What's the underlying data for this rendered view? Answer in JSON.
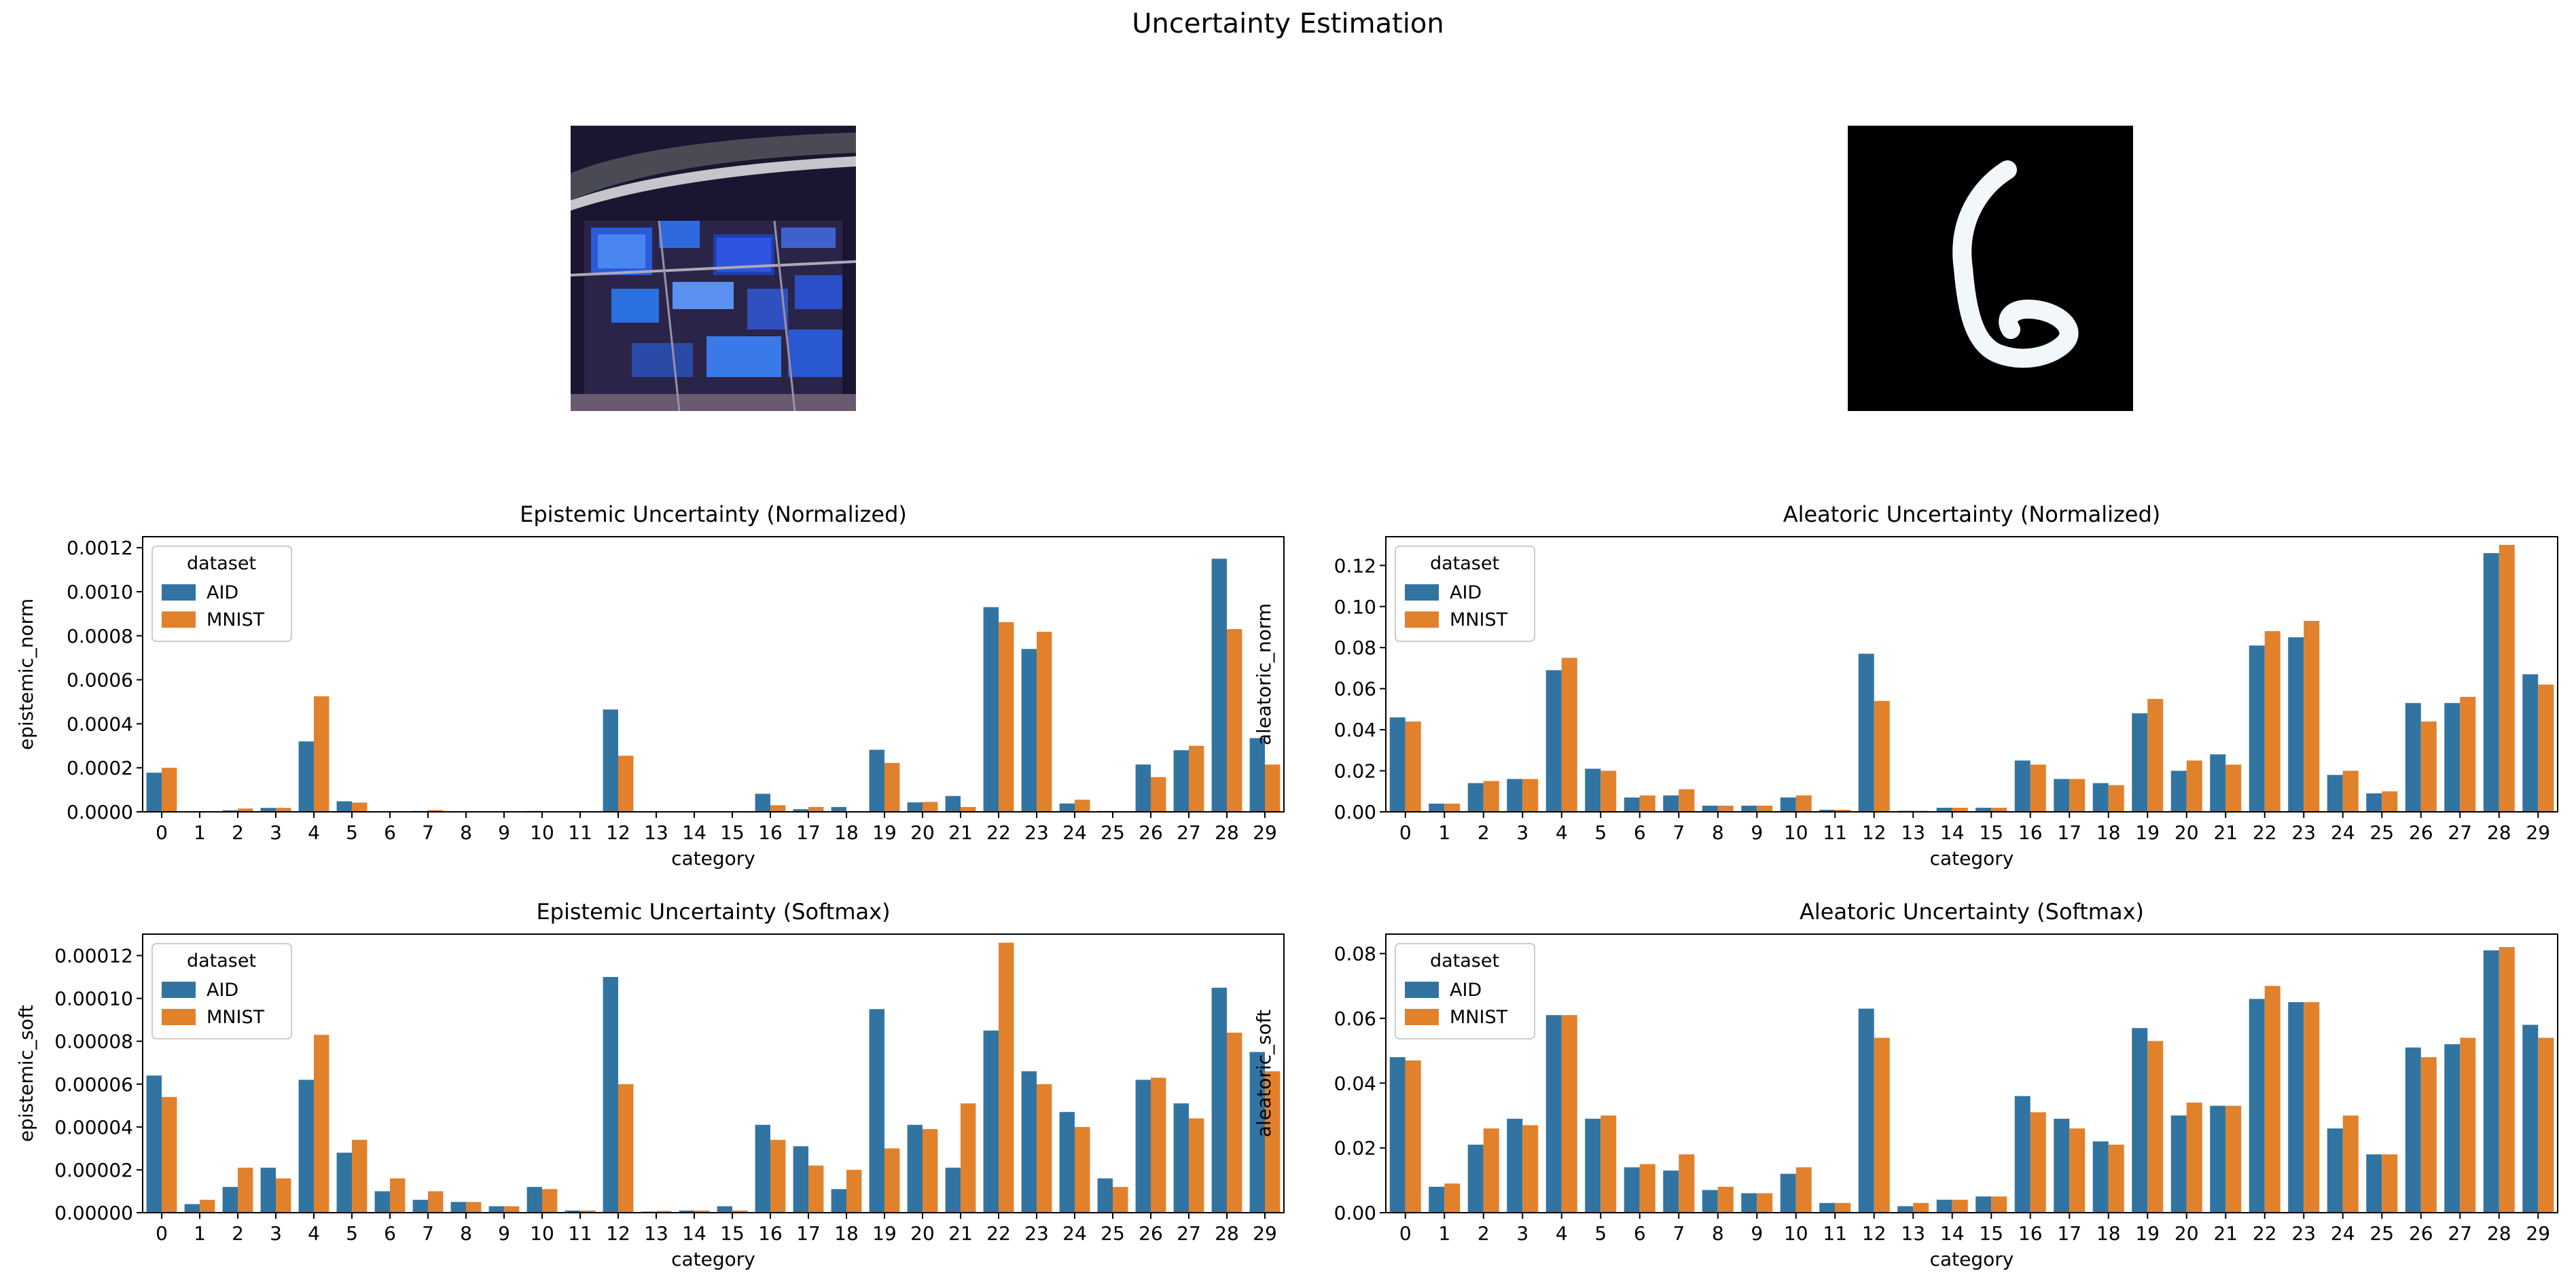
{
  "figure_title": "Uncertainty Estimation",
  "colors": {
    "aid": "#3274a1",
    "mnist": "#e1812c"
  },
  "images": [
    {
      "name": "aerial-image",
      "description_icon": "aerial-satellite-photo"
    },
    {
      "name": "mnist-digit-image",
      "description_icon": "handwritten-digit-six"
    }
  ],
  "chart_data": [
    {
      "type": "bar",
      "title": "Epistemic Uncertainty (Normalized)",
      "xlabel": "category",
      "ylabel": "epistemic_norm",
      "ylim": [
        0,
        0.00125
      ],
      "yticks": [
        0,
        0.0002,
        0.0004,
        0.0006,
        0.0008,
        0.001,
        0.0012
      ],
      "ytick_labels": [
        "0.0000",
        "0.0002",
        "0.0004",
        "0.0006",
        "0.0008",
        "0.0010",
        "0.0012"
      ],
      "legend_title": "dataset",
      "legend_loc": "upper-left",
      "categories": [
        "0",
        "1",
        "2",
        "3",
        "4",
        "5",
        "6",
        "7",
        "8",
        "9",
        "10",
        "11",
        "12",
        "13",
        "14",
        "15",
        "16",
        "17",
        "18",
        "19",
        "20",
        "21",
        "22",
        "23",
        "24",
        "25",
        "26",
        "27",
        "28",
        "29"
      ],
      "series": [
        {
          "name": "AID",
          "values": [
            0.000178,
            3e-06,
            7e-06,
            1.8e-05,
            0.00032,
            4.8e-05,
            2e-06,
            4e-06,
            1e-06,
            1e-06,
            4e-06,
            2e-06,
            0.000465,
            1e-06,
            1e-06,
            1e-06,
            8.2e-05,
            1.2e-05,
            2.2e-05,
            0.000282,
            4.3e-05,
            7.2e-05,
            0.00093,
            0.00074,
            3.8e-05,
            4e-06,
            0.000215,
            0.00028,
            0.00115,
            0.000335
          ]
        },
        {
          "name": "MNIST",
          "values": [
            0.0002,
            2e-06,
            1.5e-05,
            1.8e-05,
            0.000525,
            4.2e-05,
            2e-06,
            8e-06,
            1e-06,
            1e-06,
            3e-06,
            2e-06,
            0.000255,
            1e-06,
            1e-06,
            1e-06,
            3e-05,
            2.2e-05,
            2e-06,
            0.000222,
            4.5e-05,
            2.2e-05,
            0.000862,
            0.000818,
            5.5e-05,
            2e-06,
            0.000158,
            0.0003,
            0.00083,
            0.000215
          ]
        }
      ]
    },
    {
      "type": "bar",
      "title": "Aleatoric Uncertainty (Normalized)",
      "xlabel": "category",
      "ylabel": "aleatoric_norm",
      "ylim": [
        0,
        0.134
      ],
      "yticks": [
        0,
        0.02,
        0.04,
        0.06,
        0.08,
        0.1,
        0.12
      ],
      "ytick_labels": [
        "0.00",
        "0.02",
        "0.04",
        "0.06",
        "0.08",
        "0.10",
        "0.12"
      ],
      "legend_title": "dataset",
      "legend_loc": "upper-left",
      "categories": [
        "0",
        "1",
        "2",
        "3",
        "4",
        "5",
        "6",
        "7",
        "8",
        "9",
        "10",
        "11",
        "12",
        "13",
        "14",
        "15",
        "16",
        "17",
        "18",
        "19",
        "20",
        "21",
        "22",
        "23",
        "24",
        "25",
        "26",
        "27",
        "28",
        "29"
      ],
      "series": [
        {
          "name": "AID",
          "values": [
            0.046,
            0.004,
            0.014,
            0.016,
            0.069,
            0.021,
            0.007,
            0.008,
            0.003,
            0.003,
            0.007,
            0.001,
            0.077,
            0.0005,
            0.002,
            0.002,
            0.025,
            0.016,
            0.014,
            0.048,
            0.02,
            0.028,
            0.081,
            0.085,
            0.018,
            0.009,
            0.053,
            0.053,
            0.126,
            0.067
          ]
        },
        {
          "name": "MNIST",
          "values": [
            0.044,
            0.004,
            0.015,
            0.016,
            0.075,
            0.02,
            0.008,
            0.011,
            0.003,
            0.003,
            0.008,
            0.001,
            0.054,
            0.0005,
            0.002,
            0.002,
            0.023,
            0.016,
            0.013,
            0.055,
            0.025,
            0.023,
            0.088,
            0.093,
            0.02,
            0.01,
            0.044,
            0.056,
            0.13,
            0.062
          ]
        }
      ]
    },
    {
      "type": "bar",
      "title": "Epistemic Uncertainty (Softmax)",
      "xlabel": "category",
      "ylabel": "epistemic_soft",
      "ylim": [
        0,
        0.00013
      ],
      "yticks": [
        0,
        2e-05,
        4e-05,
        6e-05,
        8e-05,
        0.0001,
        0.00012
      ],
      "ytick_labels": [
        "0.00000",
        "0.00002",
        "0.00004",
        "0.00006",
        "0.00008",
        "0.00010",
        "0.00012"
      ],
      "legend_title": "dataset",
      "legend_loc": "upper-left",
      "categories": [
        "0",
        "1",
        "2",
        "3",
        "4",
        "5",
        "6",
        "7",
        "8",
        "9",
        "10",
        "11",
        "12",
        "13",
        "14",
        "15",
        "16",
        "17",
        "18",
        "19",
        "20",
        "21",
        "22",
        "23",
        "24",
        "25",
        "26",
        "27",
        "28",
        "29"
      ],
      "series": [
        {
          "name": "AID",
          "values": [
            6.4e-05,
            4e-06,
            1.2e-05,
            2.1e-05,
            6.2e-05,
            2.8e-05,
            1e-05,
            6e-06,
            5e-06,
            3e-06,
            1.2e-05,
            1e-06,
            0.00011,
            5e-07,
            1e-06,
            3e-06,
            4.1e-05,
            3.1e-05,
            1.1e-05,
            9.5e-05,
            4.1e-05,
            2.1e-05,
            8.5e-05,
            6.6e-05,
            4.7e-05,
            1.6e-05,
            6.2e-05,
            5.1e-05,
            0.000105,
            7.5e-05
          ]
        },
        {
          "name": "MNIST",
          "values": [
            5.4e-05,
            6e-06,
            2.1e-05,
            1.6e-05,
            8.3e-05,
            3.4e-05,
            1.6e-05,
            1e-05,
            5e-06,
            3e-06,
            1.1e-05,
            1e-06,
            6e-05,
            8e-07,
            1e-06,
            1e-06,
            3.4e-05,
            2.2e-05,
            2e-05,
            3e-05,
            3.9e-05,
            5.1e-05,
            0.000126,
            6e-05,
            4e-05,
            1.2e-05,
            6.3e-05,
            4.4e-05,
            8.4e-05,
            6.6e-05
          ]
        }
      ]
    },
    {
      "type": "bar",
      "title": "Aleatoric Uncertainty (Softmax)",
      "xlabel": "category",
      "ylabel": "aleatoric_soft",
      "ylim": [
        0,
        0.086
      ],
      "yticks": [
        0,
        0.02,
        0.04,
        0.06,
        0.08
      ],
      "ytick_labels": [
        "0.00",
        "0.02",
        "0.04",
        "0.06",
        "0.08"
      ],
      "legend_title": "dataset",
      "legend_loc": "upper-left",
      "categories": [
        "0",
        "1",
        "2",
        "3",
        "4",
        "5",
        "6",
        "7",
        "8",
        "9",
        "10",
        "11",
        "12",
        "13",
        "14",
        "15",
        "16",
        "17",
        "18",
        "19",
        "20",
        "21",
        "22",
        "23",
        "24",
        "25",
        "26",
        "27",
        "28",
        "29"
      ],
      "series": [
        {
          "name": "AID",
          "values": [
            0.048,
            0.008,
            0.021,
            0.029,
            0.061,
            0.029,
            0.014,
            0.013,
            0.007,
            0.006,
            0.012,
            0.003,
            0.063,
            0.002,
            0.004,
            0.005,
            0.036,
            0.029,
            0.022,
            0.057,
            0.03,
            0.033,
            0.066,
            0.065,
            0.026,
            0.018,
            0.051,
            0.052,
            0.081,
            0.058
          ]
        },
        {
          "name": "MNIST",
          "values": [
            0.047,
            0.009,
            0.026,
            0.027,
            0.061,
            0.03,
            0.015,
            0.018,
            0.008,
            0.006,
            0.014,
            0.003,
            0.054,
            0.003,
            0.004,
            0.005,
            0.031,
            0.026,
            0.021,
            0.053,
            0.034,
            0.033,
            0.07,
            0.065,
            0.03,
            0.018,
            0.048,
            0.054,
            0.082,
            0.054
          ]
        }
      ]
    }
  ]
}
